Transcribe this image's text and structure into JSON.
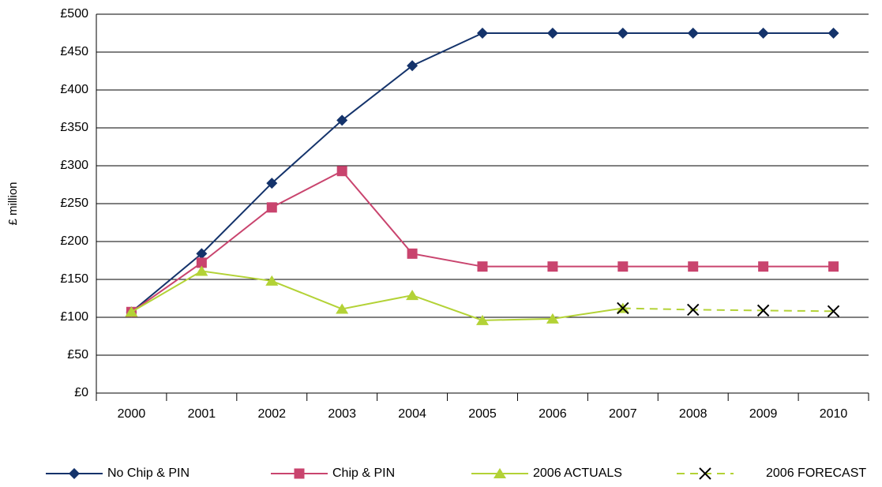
{
  "chart_data": {
    "type": "line",
    "y_label": "£ million",
    "categories": [
      "2000",
      "2001",
      "2002",
      "2003",
      "2004",
      "2005",
      "2006",
      "2007",
      "2008",
      "2009",
      "2010"
    ],
    "series": [
      {
        "name": "No Chip & PIN",
        "color": "#14336b",
        "marker": "diamond",
        "values": [
          107,
          184,
          277,
          360,
          432,
          475,
          475,
          475,
          475,
          475,
          475
        ]
      },
      {
        "name": "Chip & PIN",
        "color": "#c9446e",
        "marker": "square",
        "values": [
          107,
          172,
          245,
          293,
          184,
          167,
          167,
          167,
          167,
          167,
          167
        ]
      },
      {
        "name": "2006 ACTUALS",
        "color": "#b3d236",
        "marker": "triangle",
        "values": [
          107,
          161,
          148,
          111,
          129,
          96,
          98,
          112,
          null,
          null,
          null
        ]
      },
      {
        "name": "2006 FORECAST",
        "color": "#b3d236",
        "marker": "x",
        "marker_color": "#000000",
        "dashed": true,
        "values": [
          null,
          null,
          null,
          null,
          null,
          null,
          null,
          112,
          110,
          109,
          108
        ]
      }
    ],
    "ylim": [
      0,
      500
    ],
    "yticks": [
      {
        "value": 0,
        "label": "£0"
      },
      {
        "value": 50,
        "label": "£50"
      },
      {
        "value": 100,
        "label": "£100"
      },
      {
        "value": 150,
        "label": "£150"
      },
      {
        "value": 200,
        "label": "£200"
      },
      {
        "value": 250,
        "label": "£250"
      },
      {
        "value": 300,
        "label": "£300"
      },
      {
        "value": 350,
        "label": "£350"
      },
      {
        "value": 400,
        "label": "£400"
      },
      {
        "value": 450,
        "label": "£450"
      },
      {
        "value": 500,
        "label": "£500"
      }
    ],
    "grid": true,
    "legend": "bottom"
  }
}
